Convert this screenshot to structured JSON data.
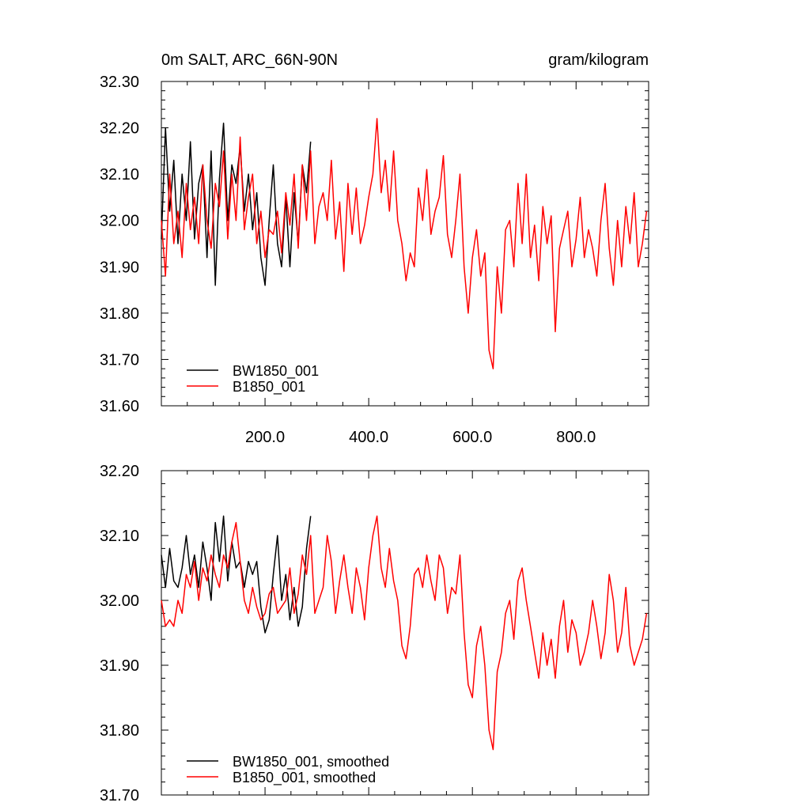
{
  "chart_data": [
    {
      "type": "line",
      "title_left": "0m SALT, ARC_66N-90N",
      "title_right": "gram/kilogram",
      "xlim": [
        0,
        940
      ],
      "ylim": [
        31.6,
        32.3
      ],
      "x_ticks": [
        200,
        400,
        600,
        800
      ],
      "x_tick_labels": [
        "200.0",
        "400.0",
        "600.0",
        "800.0"
      ],
      "y_ticks": [
        31.6,
        31.7,
        31.8,
        31.9,
        32.0,
        32.1,
        32.2,
        32.3
      ],
      "y_tick_labels": [
        "31.60",
        "31.70",
        "31.80",
        "31.90",
        "32.00",
        "32.10",
        "32.20",
        "32.30"
      ],
      "legend_position": "bottom-left",
      "series": [
        {
          "name": "BW1850_001",
          "color": "#000000",
          "x": [
            0,
            8,
            16,
            24,
            32,
            40,
            48,
            56,
            64,
            72,
            80,
            88,
            96,
            104,
            112,
            120,
            128,
            136,
            144,
            152,
            160,
            168,
            176,
            184,
            192,
            200,
            208,
            216,
            224,
            232,
            240,
            248,
            256,
            264,
            272,
            280,
            288
          ],
          "values": [
            31.96,
            32.2,
            32.02,
            32.13,
            31.95,
            32.1,
            32.0,
            32.17,
            31.96,
            32.08,
            32.12,
            31.92,
            32.15,
            31.86,
            32.09,
            32.21,
            32.0,
            32.12,
            32.08,
            32.16,
            32.02,
            32.1,
            31.98,
            32.06,
            31.92,
            31.86,
            32.0,
            32.12,
            31.95,
            31.9,
            32.05,
            31.9,
            32.06,
            31.95,
            32.12,
            32.06,
            32.17
          ]
        },
        {
          "name": "B1850_001",
          "color": "#ff0000",
          "x": [
            0,
            8,
            16,
            24,
            32,
            40,
            48,
            56,
            64,
            72,
            80,
            88,
            96,
            104,
            112,
            120,
            128,
            136,
            144,
            152,
            160,
            168,
            176,
            184,
            192,
            200,
            208,
            216,
            224,
            232,
            240,
            248,
            256,
            264,
            272,
            280,
            288,
            296,
            304,
            312,
            320,
            328,
            336,
            344,
            352,
            360,
            368,
            376,
            384,
            392,
            400,
            408,
            416,
            424,
            432,
            440,
            448,
            456,
            464,
            472,
            480,
            488,
            496,
            504,
            512,
            520,
            528,
            536,
            544,
            552,
            560,
            568,
            576,
            584,
            592,
            600,
            608,
            616,
            624,
            632,
            640,
            648,
            656,
            664,
            672,
            680,
            688,
            696,
            704,
            712,
            720,
            728,
            736,
            744,
            752,
            760,
            768,
            776,
            784,
            792,
            800,
            808,
            816,
            824,
            832,
            840,
            848,
            856,
            864,
            872,
            880,
            888,
            896,
            904,
            912,
            920,
            928,
            936
          ],
          "values": [
            32.0,
            31.88,
            32.1,
            31.95,
            32.02,
            31.92,
            32.08,
            31.98,
            32.05,
            31.95,
            32.12,
            32.0,
            31.94,
            32.08,
            32.03,
            32.15,
            31.96,
            32.1,
            32.0,
            32.18,
            31.98,
            32.05,
            32.1,
            31.95,
            32.02,
            31.92,
            31.98,
            31.97,
            32.02,
            31.93,
            32.06,
            31.99,
            32.1,
            31.94,
            32.12,
            32.0,
            32.15,
            31.95,
            32.03,
            32.06,
            32.0,
            32.13,
            31.96,
            32.04,
            31.89,
            32.08,
            31.97,
            32.07,
            31.95,
            31.99,
            32.05,
            32.1,
            32.22,
            32.06,
            32.13,
            32.02,
            32.15,
            32.0,
            31.95,
            31.87,
            31.93,
            31.9,
            32.07,
            32.0,
            32.11,
            31.97,
            32.02,
            32.05,
            32.14,
            31.97,
            31.92,
            32.0,
            32.1,
            31.9,
            31.8,
            31.92,
            31.98,
            31.88,
            31.93,
            31.72,
            31.68,
            31.9,
            31.8,
            31.98,
            32.0,
            31.9,
            32.08,
            31.95,
            32.1,
            31.92,
            31.99,
            31.87,
            32.03,
            31.95,
            32.01,
            31.76,
            31.94,
            31.98,
            32.02,
            31.9,
            31.96,
            32.05,
            31.92,
            31.98,
            31.94,
            31.88,
            32.0,
            32.08,
            31.94,
            31.86,
            32.0,
            31.9,
            32.03,
            31.95,
            32.06,
            31.9,
            31.95,
            32.02
          ]
        }
      ]
    },
    {
      "type": "line",
      "xlim": [
        0,
        940
      ],
      "ylim": [
        31.7,
        32.2
      ],
      "y_ticks": [
        31.7,
        31.8,
        31.9,
        32.0,
        32.1,
        32.2
      ],
      "y_tick_labels": [
        "31.70",
        "31.80",
        "31.90",
        "32.00",
        "32.10",
        "32.20"
      ],
      "legend_position": "bottom-left",
      "series": [
        {
          "name": "BW1850_001, smoothed",
          "color": "#000000",
          "x": [
            0,
            8,
            16,
            24,
            32,
            40,
            48,
            56,
            64,
            72,
            80,
            88,
            96,
            104,
            112,
            120,
            128,
            136,
            144,
            152,
            160,
            168,
            176,
            184,
            192,
            200,
            208,
            216,
            224,
            232,
            240,
            248,
            256,
            264,
            272,
            280,
            288
          ],
          "values": [
            32.07,
            32.02,
            32.08,
            32.03,
            32.02,
            32.05,
            32.1,
            32.04,
            32.07,
            32.02,
            32.09,
            32.05,
            32.0,
            32.12,
            32.06,
            32.13,
            32.03,
            32.09,
            32.05,
            32.06,
            32.02,
            32.06,
            32.04,
            32.06,
            31.99,
            31.95,
            31.97,
            32.04,
            32.1,
            32.0,
            32.04,
            31.97,
            32.02,
            31.96,
            31.99,
            32.08,
            32.13
          ]
        },
        {
          "name": "B1850_001, smoothed",
          "color": "#ff0000",
          "x": [
            0,
            8,
            16,
            24,
            32,
            40,
            48,
            56,
            64,
            72,
            80,
            88,
            96,
            104,
            112,
            120,
            128,
            136,
            144,
            152,
            160,
            168,
            176,
            184,
            192,
            200,
            208,
            216,
            224,
            232,
            240,
            248,
            256,
            264,
            272,
            280,
            288,
            296,
            304,
            312,
            320,
            328,
            336,
            344,
            352,
            360,
            368,
            376,
            384,
            392,
            400,
            408,
            416,
            424,
            432,
            440,
            448,
            456,
            464,
            472,
            480,
            488,
            496,
            504,
            512,
            520,
            528,
            536,
            544,
            552,
            560,
            568,
            576,
            584,
            592,
            600,
            608,
            616,
            624,
            632,
            640,
            648,
            656,
            664,
            672,
            680,
            688,
            696,
            704,
            712,
            720,
            728,
            736,
            744,
            752,
            760,
            768,
            776,
            784,
            792,
            800,
            808,
            816,
            824,
            832,
            840,
            848,
            856,
            864,
            872,
            880,
            888,
            896,
            904,
            912,
            920,
            928,
            936
          ],
          "values": [
            32.0,
            31.96,
            31.97,
            31.96,
            32.0,
            31.98,
            32.04,
            32.02,
            32.06,
            32.0,
            32.05,
            32.03,
            32.07,
            32.04,
            32.02,
            32.07,
            32.05,
            32.09,
            32.12,
            32.06,
            32.0,
            31.98,
            32.02,
            31.99,
            31.97,
            31.98,
            32.01,
            32.02,
            31.98,
            31.99,
            32.0,
            32.05,
            31.98,
            32.01,
            32.07,
            32.04,
            32.1,
            31.98,
            32.0,
            32.02,
            32.1,
            32.06,
            31.98,
            32.03,
            32.07,
            32.02,
            31.98,
            32.05,
            32.02,
            31.97,
            32.05,
            32.1,
            32.13,
            32.05,
            32.02,
            32.08,
            32.03,
            32.0,
            31.93,
            31.91,
            31.96,
            32.04,
            32.05,
            32.02,
            32.07,
            32.03,
            32.0,
            32.07,
            32.05,
            31.98,
            32.02,
            32.01,
            32.07,
            31.95,
            31.87,
            31.85,
            31.93,
            31.96,
            31.9,
            31.8,
            31.77,
            31.89,
            31.92,
            31.98,
            32.0,
            31.94,
            32.03,
            32.05,
            32.0,
            31.96,
            31.92,
            31.88,
            31.95,
            31.9,
            31.94,
            31.88,
            31.96,
            32.0,
            31.92,
            31.97,
            31.95,
            31.9,
            31.92,
            31.95,
            32.0,
            31.96,
            31.91,
            31.95,
            32.04,
            32.0,
            31.92,
            31.95,
            32.02,
            31.93,
            31.9,
            31.92,
            31.94,
            31.98
          ]
        }
      ]
    }
  ]
}
